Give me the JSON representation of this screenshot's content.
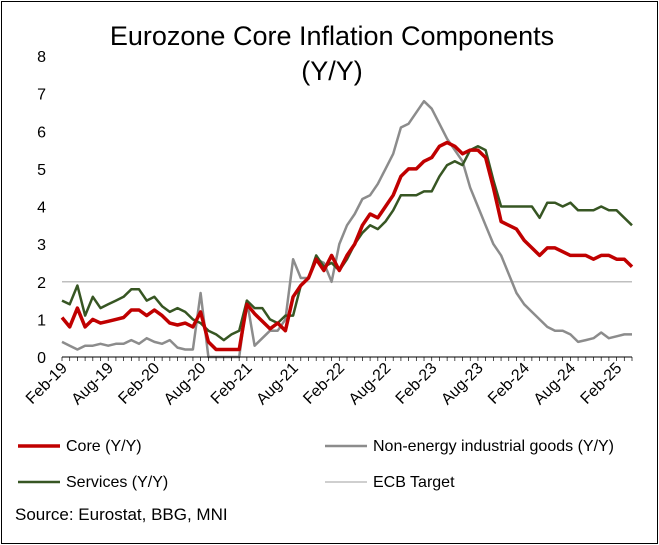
{
  "chart_data": {
    "type": "line",
    "title_line1": "Eurozone Core Inflation Components",
    "title_line2": "(Y/Y)",
    "xlabel": "",
    "ylabel": "",
    "ylim": [
      0,
      8
    ],
    "yticks": [
      "0",
      "1",
      "2",
      "3",
      "4",
      "5",
      "6",
      "7",
      "8"
    ],
    "x_tick_labels": [
      "Feb-19",
      "Aug-19",
      "Feb-20",
      "Aug-20",
      "Feb-21",
      "Aug-21",
      "Feb-22",
      "Aug-22",
      "Feb-23",
      "Aug-23",
      "Feb-24",
      "Aug-24",
      "Feb-25"
    ],
    "x_tick_every_months": 6,
    "period_count": 75,
    "legend_placement": "bottom",
    "series": [
      {
        "name": "Core (Y/Y)",
        "color": "#C00000",
        "values": [
          1.05,
          0.8,
          1.3,
          0.8,
          1.0,
          0.9,
          0.95,
          1.0,
          1.05,
          1.25,
          1.25,
          1.1,
          1.25,
          1.1,
          0.9,
          0.85,
          0.9,
          0.8,
          1.2,
          0.4,
          0.2,
          0.2,
          0.2,
          0.2,
          1.4,
          1.15,
          0.95,
          0.75,
          0.9,
          0.7,
          1.6,
          1.9,
          2.1,
          2.6,
          2.3,
          2.7,
          2.3,
          2.7,
          3.0,
          3.5,
          3.8,
          3.7,
          4.0,
          4.3,
          4.8,
          5.0,
          5.0,
          5.2,
          5.3,
          5.6,
          5.7,
          5.6,
          5.4,
          5.5,
          5.5,
          5.3,
          4.5,
          3.6,
          3.5,
          3.4,
          3.1,
          2.9,
          2.7,
          2.9,
          2.9,
          2.8,
          2.7,
          2.7,
          2.7,
          2.6,
          2.7,
          2.7,
          2.6,
          2.6,
          2.4
        ]
      },
      {
        "name": "Non-energy industrial goods (Y/Y)",
        "color": "#8C8C8C",
        "values": [
          0.4,
          0.3,
          0.2,
          0.3,
          0.3,
          0.35,
          0.3,
          0.35,
          0.35,
          0.45,
          0.35,
          0.5,
          0.4,
          0.35,
          0.45,
          0.25,
          0.2,
          0.2,
          1.7,
          0.0,
          -0.1,
          -0.3,
          -0.3,
          -0.3,
          1.5,
          0.3,
          0.5,
          0.7,
          0.7,
          1.0,
          2.6,
          2.1,
          2.1,
          2.6,
          2.5,
          2.0,
          3.0,
          3.5,
          3.8,
          4.2,
          4.3,
          4.6,
          5.0,
          5.4,
          6.1,
          6.2,
          6.5,
          6.8,
          6.6,
          6.2,
          5.8,
          5.5,
          5.2,
          4.5,
          4.0,
          3.5,
          3.0,
          2.7,
          2.2,
          1.7,
          1.4,
          1.2,
          1.0,
          0.8,
          0.7,
          0.7,
          0.6,
          0.4,
          0.45,
          0.5,
          0.65,
          0.5,
          0.55,
          0.6,
          0.6
        ]
      },
      {
        "name": "Services (Y/Y)",
        "color": "#375623",
        "values": [
          1.5,
          1.4,
          1.9,
          1.1,
          1.6,
          1.3,
          1.4,
          1.5,
          1.6,
          1.8,
          1.8,
          1.5,
          1.6,
          1.35,
          1.2,
          1.3,
          1.2,
          1.0,
          0.9,
          0.7,
          0.6,
          0.45,
          0.6,
          0.7,
          1.5,
          1.3,
          1.3,
          1.0,
          0.9,
          1.1,
          1.1,
          1.9,
          2.1,
          2.7,
          2.4,
          2.5,
          2.3,
          2.6,
          3.0,
          3.3,
          3.5,
          3.4,
          3.6,
          3.9,
          4.3,
          4.3,
          4.3,
          4.4,
          4.4,
          4.8,
          5.1,
          5.2,
          5.1,
          5.5,
          5.6,
          5.5,
          4.7,
          4.0,
          4.0,
          4.0,
          4.0,
          4.0,
          3.7,
          4.1,
          4.1,
          4.0,
          4.1,
          3.9,
          3.9,
          3.9,
          4.0,
          3.9,
          3.9,
          3.7,
          3.5
        ]
      },
      {
        "name": "ECB Target",
        "color": "#BFBFBF",
        "values": [
          2,
          2,
          2,
          2,
          2,
          2,
          2,
          2,
          2,
          2,
          2,
          2,
          2,
          2,
          2,
          2,
          2,
          2,
          2,
          2,
          2,
          2,
          2,
          2,
          2,
          2,
          2,
          2,
          2,
          2,
          2,
          2,
          2,
          2,
          2,
          2,
          2,
          2,
          2,
          2,
          2,
          2,
          2,
          2,
          2,
          2,
          2,
          2,
          2,
          2,
          2,
          2,
          2,
          2,
          2,
          2,
          2,
          2,
          2,
          2,
          2,
          2,
          2,
          2,
          2,
          2,
          2,
          2,
          2,
          2,
          2,
          2,
          2,
          2,
          2
        ]
      }
    ]
  },
  "source_text": "Source: Eurostat, BBG, MNI"
}
